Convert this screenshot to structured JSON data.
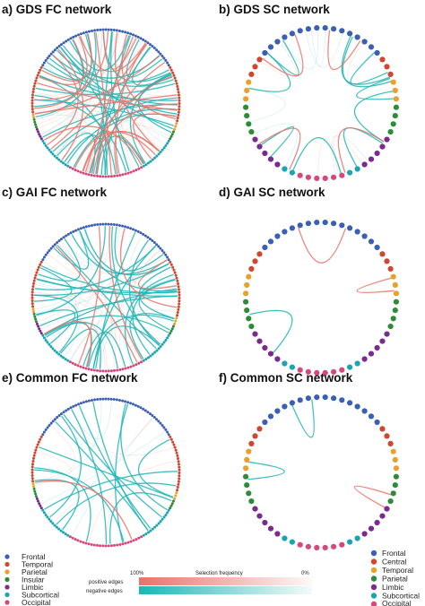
{
  "panels": [
    {
      "id": "a",
      "title": "a) GDS FC network",
      "type": "FC",
      "density": "high",
      "pos_count": 26,
      "neg_count": 34,
      "faint_count": 36
    },
    {
      "id": "b",
      "title": "b) GDS SC network",
      "type": "SC",
      "density": "medium",
      "pos_count": 4,
      "neg_count": 10,
      "faint_count": 10
    },
    {
      "id": "c",
      "title": "c) GAI FC network",
      "type": "FC",
      "density": "high",
      "pos_count": 6,
      "neg_count": 34,
      "faint_count": 30
    },
    {
      "id": "d",
      "title": "d) GAI SC network",
      "type": "SC",
      "density": "low",
      "pos_count": 2,
      "neg_count": 1,
      "faint_count": 0
    },
    {
      "id": "e",
      "title": "e) Common FC network",
      "type": "FC",
      "density": "medium",
      "pos_count": 1,
      "neg_count": 16,
      "faint_count": 10
    },
    {
      "id": "f",
      "title": "f) Common SC network",
      "type": "SC",
      "density": "low",
      "pos_count": 1,
      "neg_count": 2,
      "faint_count": 0
    }
  ],
  "fc_regions": [
    {
      "name": "Frontal",
      "color": "#3a5fb5"
    },
    {
      "name": "Temporal",
      "color": "#d0462e"
    },
    {
      "name": "Parietal",
      "color": "#e8a12a"
    },
    {
      "name": "Insular",
      "color": "#2e8b3a"
    },
    {
      "name": "Limbic",
      "color": "#7a2b8e"
    },
    {
      "name": "Subcortical",
      "color": "#1aa6b0"
    },
    {
      "name": "Occipital",
      "color": "#d6477e"
    }
  ],
  "sc_regions": [
    {
      "name": "Frontal",
      "color": "#3a5fb5"
    },
    {
      "name": "Central",
      "color": "#d0462e"
    },
    {
      "name": "Temporal",
      "color": "#e8a12a"
    },
    {
      "name": "Parietal",
      "color": "#2e8b3a"
    },
    {
      "name": "Limbic",
      "color": "#7a2b8e"
    },
    {
      "name": "Subcortical",
      "color": "#1aa6b0"
    },
    {
      "name": "Occipital",
      "color": "#d6477e"
    }
  ],
  "edge_legend": {
    "title": "Selection frequency",
    "left": "100%",
    "right": "0%",
    "positive_label": "positive edges",
    "negative_label": "negative edges",
    "positive_color": "#e8736a",
    "negative_color": "#1fb5b5"
  }
}
